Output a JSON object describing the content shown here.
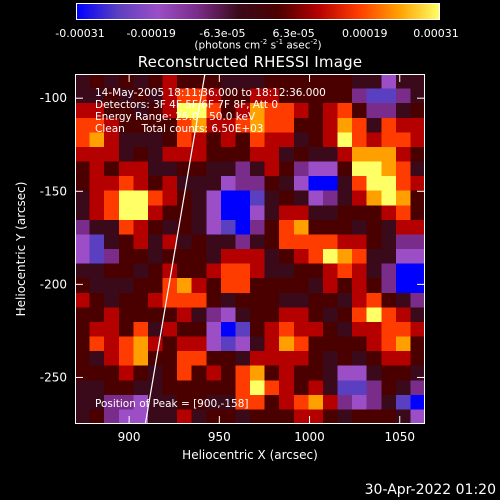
{
  "colorbar": {
    "tick_labels": [
      "-0.00031",
      "-0.00019",
      "-6.3e-05",
      "6.3e-05",
      "0.00019",
      "0.00031"
    ],
    "units_pre": "(photons cm",
    "units_exp1": "-2",
    "units_mid": " s",
    "units_exp2": "-1",
    "units_mid2": " asec",
    "units_exp3": "-2",
    "units_post": ")",
    "range": [
      -0.00031,
      0.00031
    ]
  },
  "annotations": {
    "line1": "14-May-2005 18:11:36.000 to 18:12:36.000",
    "line2": "Detectors: 3F 4F 5F 6F 7F 8F, Att 0",
    "line3": "Energy Range: 25.0 - 50.0 keV",
    "line4": "Clean     Total counts: 6.50E+03",
    "peak": "Position of Peak = [900,-158]"
  },
  "timestamp": "30-Apr-2022 01:20",
  "chart_data": {
    "type": "heatmap",
    "title": "Reconstructed RHESSI Image",
    "xlabel": "Heliocentric X (arcsec)",
    "ylabel": "Heliocentric Y (arcsec)",
    "xlim": [
      870,
      1064
    ],
    "ylim": [
      -275,
      -87
    ],
    "x_ticks": [
      "900",
      "950",
      "1000",
      "1050"
    ],
    "y_ticks": [
      "-100",
      "-150",
      "-200",
      "-250"
    ],
    "x_tick_values": [
      900,
      950,
      1000,
      1050
    ],
    "y_tick_values": [
      -100,
      -150,
      -200,
      -250
    ],
    "limb_line": [
      [
        909,
        -275
      ],
      [
        942,
        -87
      ]
    ],
    "colormap": [
      "#0000ff",
      "#5a3fc0",
      "#9b4ec6",
      "#7a2c8a",
      "#3a0a1a",
      "#4b0000",
      "#b50000",
      "#ff3c00",
      "#ffa000",
      "#ffff66"
    ],
    "grid_rows": 24,
    "grid_cols": 24,
    "hotspots": [
      {
        "x": 902,
        "y": -157,
        "level": 1.0,
        "spread": 9
      },
      {
        "x": 935,
        "y": -108,
        "level": 0.75,
        "spread": 9
      },
      {
        "x": 975,
        "y": -112,
        "level": 0.7,
        "spread": 9
      },
      {
        "x": 1020,
        "y": -118,
        "level": 0.65,
        "spread": 8
      },
      {
        "x": 1035,
        "y": -138,
        "level": 0.9,
        "spread": 8
      },
      {
        "x": 1045,
        "y": -150,
        "level": 0.8,
        "spread": 8
      },
      {
        "x": 1050,
        "y": -120,
        "level": 0.6,
        "spread": 7
      },
      {
        "x": 990,
        "y": -170,
        "level": 0.6,
        "spread": 8
      },
      {
        "x": 1015,
        "y": -185,
        "level": 0.75,
        "spread": 8
      },
      {
        "x": 960,
        "y": -195,
        "level": 0.55,
        "spread": 8
      },
      {
        "x": 930,
        "y": -205,
        "level": 0.6,
        "spread": 8
      },
      {
        "x": 905,
        "y": -235,
        "level": 0.7,
        "spread": 7
      },
      {
        "x": 935,
        "y": -240,
        "level": 0.5,
        "spread": 7
      },
      {
        "x": 990,
        "y": -230,
        "level": 0.55,
        "spread": 8
      },
      {
        "x": 1035,
        "y": -215,
        "level": 0.6,
        "spread": 8
      },
      {
        "x": 1050,
        "y": -232,
        "level": 0.6,
        "spread": 7
      },
      {
        "x": 970,
        "y": -255,
        "level": 0.75,
        "spread": 7
      },
      {
        "x": 1000,
        "y": -265,
        "level": 0.6,
        "spread": 7
      },
      {
        "x": 885,
        "y": -225,
        "level": 0.5,
        "spread": 6
      },
      {
        "x": 880,
        "y": -120,
        "level": 0.55,
        "spread": 7
      }
    ],
    "coldspots": [
      {
        "x": 960,
        "y": -160,
        "level": 1.0,
        "spread": 10
      },
      {
        "x": 1005,
        "y": -145,
        "level": 0.8,
        "spread": 8
      },
      {
        "x": 1055,
        "y": -195,
        "level": 0.9,
        "spread": 9
      },
      {
        "x": 955,
        "y": -225,
        "level": 0.8,
        "spread": 8
      },
      {
        "x": 1025,
        "y": -255,
        "level": 0.7,
        "spread": 8
      },
      {
        "x": 900,
        "y": -270,
        "level": 0.6,
        "spread": 8
      },
      {
        "x": 1040,
        "y": -100,
        "level": 0.7,
        "spread": 7
      },
      {
        "x": 880,
        "y": -180,
        "level": 0.7,
        "spread": 8
      },
      {
        "x": 1060,
        "y": -265,
        "level": 0.8,
        "spread": 7
      }
    ]
  }
}
